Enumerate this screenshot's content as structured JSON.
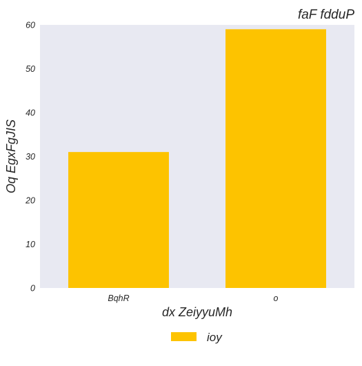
{
  "chart_data": {
    "type": "bar",
    "title": "faF fdduP",
    "xlabel": "dx ZeiyyuMh",
    "ylabel": "Oq EgxFgJIS",
    "categories": [
      "BqhR",
      "o"
    ],
    "series": [
      {
        "name": "ioy",
        "values": [
          31,
          59
        ]
      }
    ],
    "ylim": [
      0,
      60
    ],
    "yticks": [
      0,
      10,
      20,
      30,
      40,
      50,
      60
    ],
    "grid": false,
    "legend_position": "bottom-center",
    "colors": {
      "plot_background": "#e8e9f2",
      "bar": "#fdc300",
      "text": "#262626"
    }
  }
}
